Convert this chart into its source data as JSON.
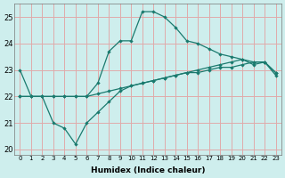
{
  "xlabel": "Humidex (Indice chaleur)",
  "xlim": [
    -0.5,
    23.5
  ],
  "ylim": [
    19.8,
    25.5
  ],
  "yticks": [
    20,
    21,
    22,
    23,
    24,
    25
  ],
  "xticks": [
    0,
    1,
    2,
    3,
    4,
    5,
    6,
    7,
    8,
    9,
    10,
    11,
    12,
    13,
    14,
    15,
    16,
    17,
    18,
    19,
    20,
    21,
    22,
    23
  ],
  "bg_color": "#ceeeed",
  "grid_color": "#e0aaaa",
  "line_color": "#1a7a6e",
  "line1": [
    23.0,
    22.0,
    22.0,
    22.0,
    22.0,
    22.0,
    22.0,
    22.5,
    23.7,
    24.1,
    24.1,
    25.2,
    25.2,
    25.0,
    24.6,
    24.1,
    24.0,
    23.8,
    23.6,
    23.5,
    23.4,
    23.3,
    23.3,
    22.9
  ],
  "line2": [
    22.0,
    22.0,
    22.0,
    22.0,
    22.0,
    22.0,
    22.0,
    22.1,
    22.2,
    22.3,
    22.4,
    22.5,
    22.6,
    22.7,
    22.8,
    22.9,
    22.9,
    23.0,
    23.1,
    23.1,
    23.2,
    23.3,
    23.3,
    22.9
  ],
  "line3": [
    22.0,
    22.0,
    22.0,
    21.0,
    20.8,
    20.2,
    21.0,
    21.4,
    21.8,
    22.2,
    22.4,
    22.5,
    22.6,
    22.7,
    22.8,
    22.9,
    23.0,
    23.1,
    23.2,
    23.3,
    23.4,
    23.2,
    23.3,
    22.8
  ]
}
